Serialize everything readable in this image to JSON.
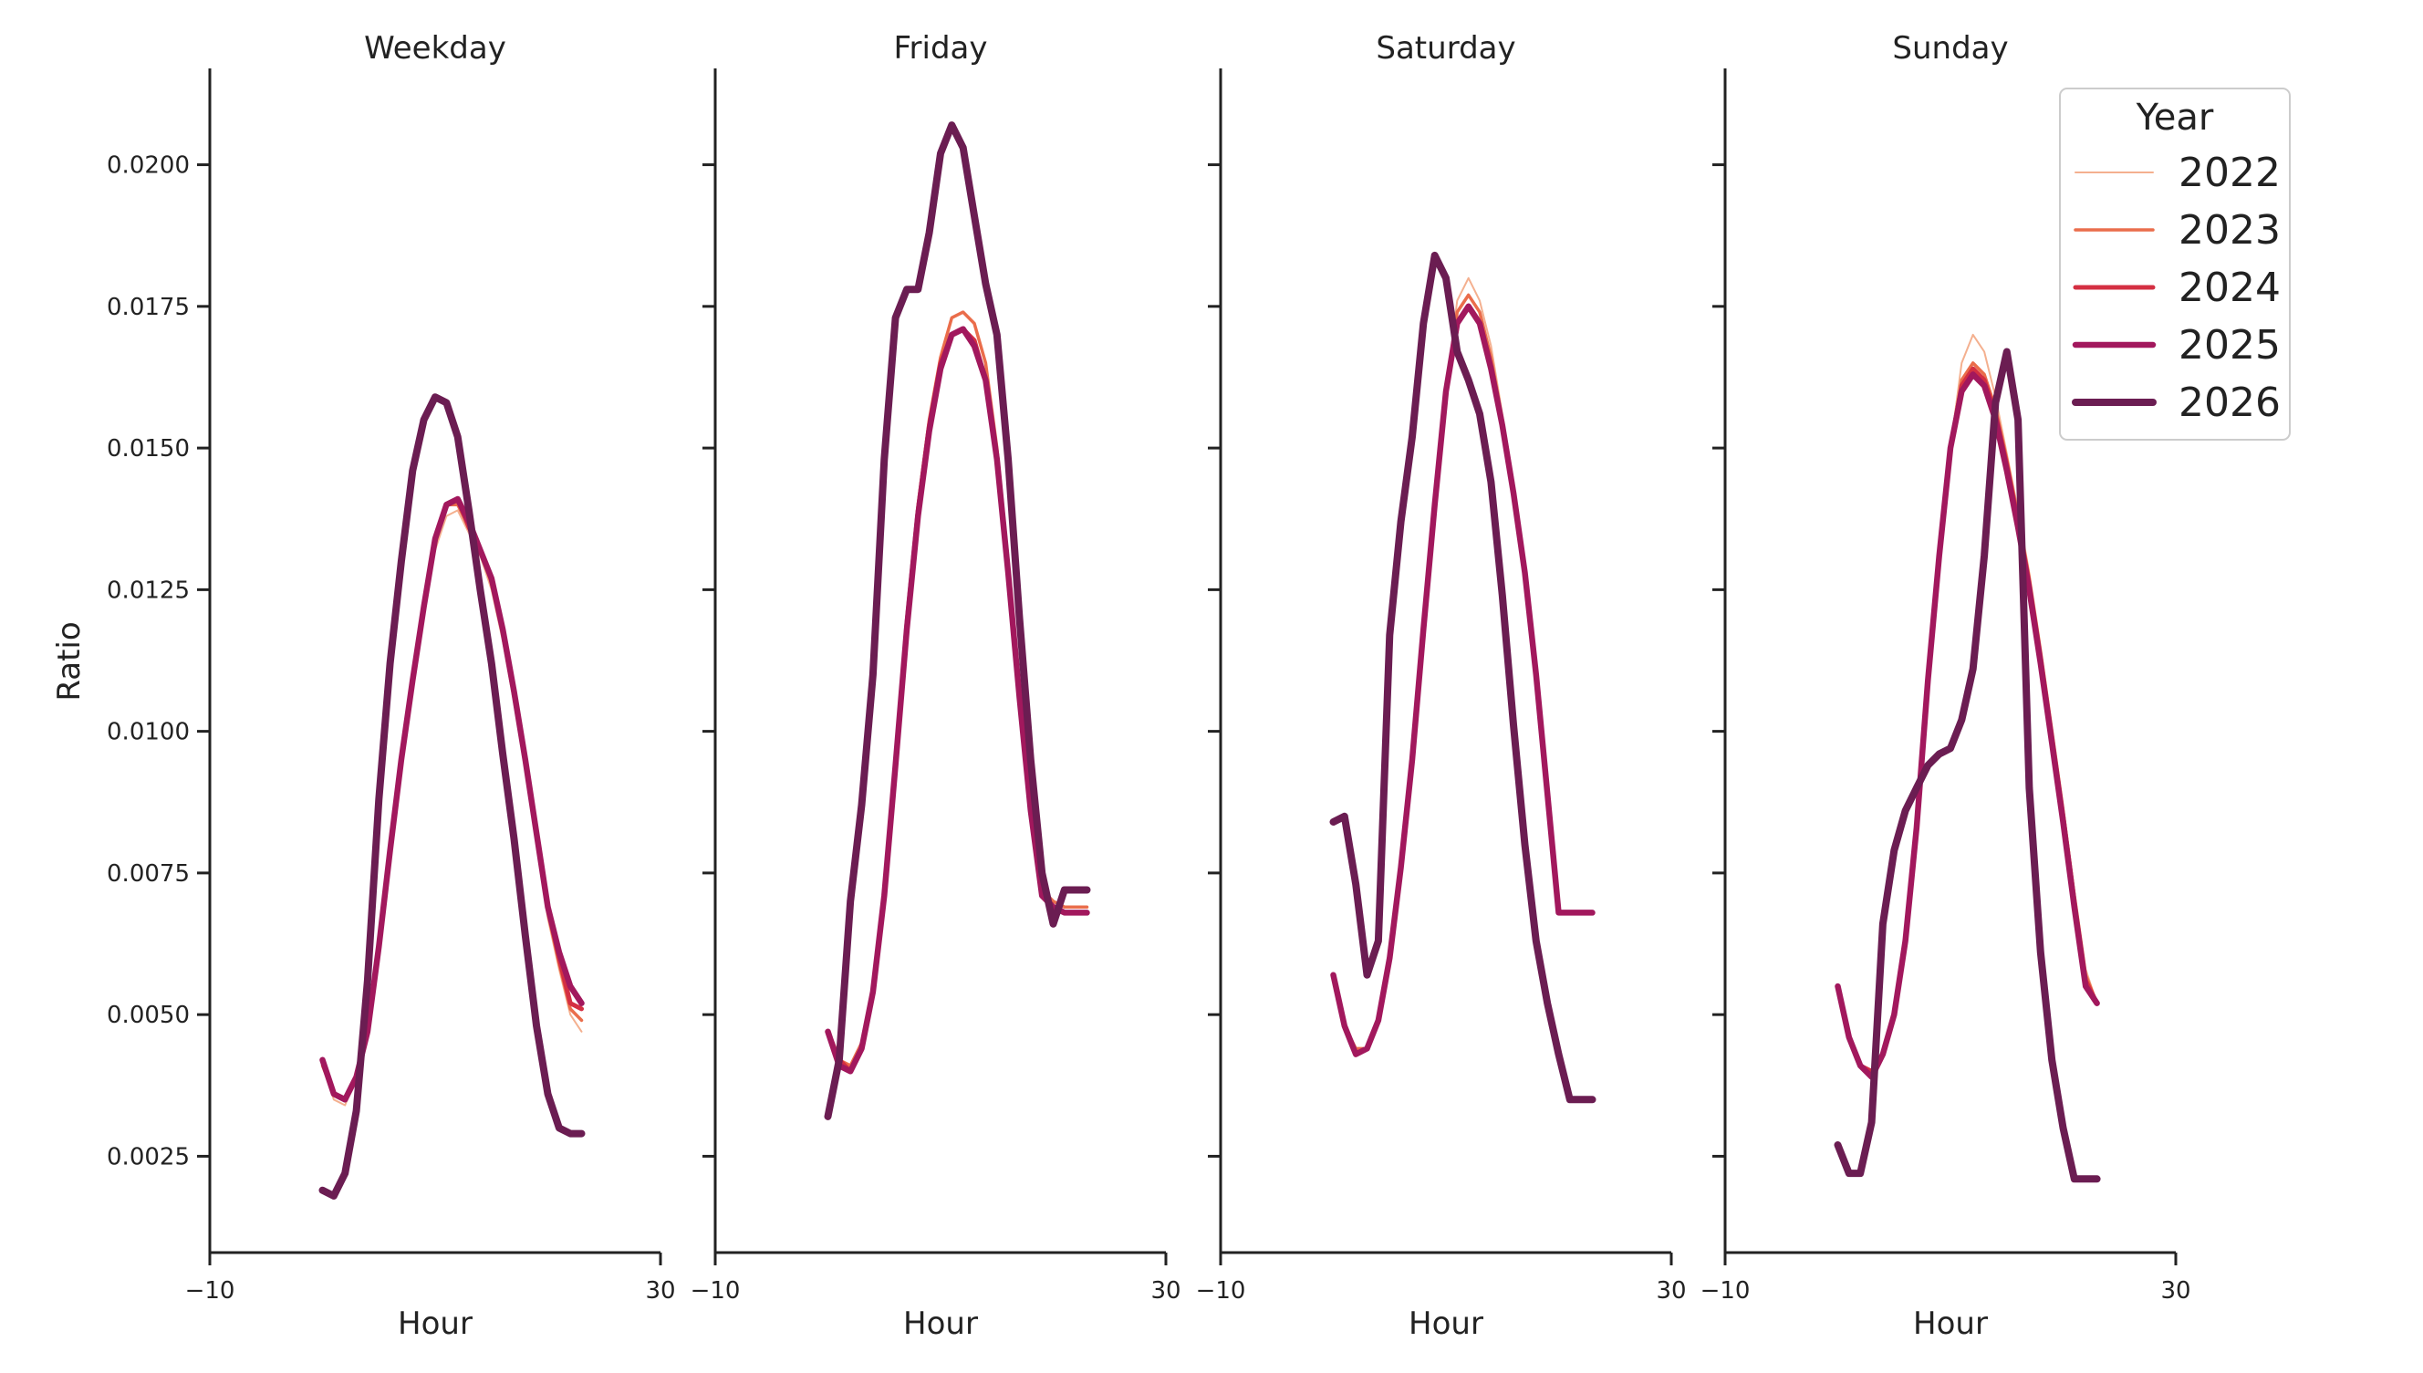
{
  "chart_data": {
    "type": "line",
    "ylabel": "Ratio",
    "legend": {
      "title": "Year",
      "position": "top-right"
    },
    "xlim": [
      -10,
      30
    ],
    "ylim": [
      0.0008,
      0.0217
    ],
    "xticks": [
      -10,
      30
    ],
    "xtick_labels": [
      "−10",
      "30"
    ],
    "yticks": [
      0.0025,
      0.005,
      0.0075,
      0.01,
      0.0125,
      0.015,
      0.0175,
      0.02
    ],
    "ytick_labels": [
      "0.0025",
      "0.0050",
      "0.0075",
      "0.0100",
      "0.0125",
      "0.0150",
      "0.0175",
      "0.0200"
    ],
    "grid": false,
    "series_styles": [
      {
        "name": "2022",
        "color": "#f4b08f",
        "width": 2
      },
      {
        "name": "2023",
        "color": "#ea6d4b",
        "width": 3.5
      },
      {
        "name": "2024",
        "color": "#d42f42",
        "width": 5
      },
      {
        "name": "2025",
        "color": "#a2185d",
        "width": 6.5
      },
      {
        "name": "2026",
        "color": "#6b1d52",
        "width": 8
      }
    ],
    "panels": [
      {
        "title": "Weekday",
        "xlabel": "Hour",
        "x": [
          0,
          1,
          2,
          3,
          4,
          5,
          6,
          7,
          8,
          9,
          10,
          11,
          12,
          13,
          14,
          15,
          16,
          17,
          18,
          19,
          20,
          21,
          22,
          23
        ],
        "series": [
          {
            "name": "2022",
            "values": [
              0.0041,
              0.0035,
              0.0034,
              0.0039,
              0.0048,
              0.0062,
              0.0079,
              0.0095,
              0.0108,
              0.0121,
              0.0132,
              0.0138,
              0.0139,
              0.0135,
              0.0131,
              0.0125,
              0.0116,
              0.0105,
              0.0093,
              0.008,
              0.0067,
              0.0058,
              0.005,
              0.0047
            ]
          },
          {
            "name": "2023",
            "values": [
              0.0041,
              0.0036,
              0.0035,
              0.0039,
              0.0048,
              0.0062,
              0.0079,
              0.0095,
              0.0108,
              0.0121,
              0.0133,
              0.014,
              0.014,
              0.0136,
              0.0132,
              0.0126,
              0.0117,
              0.0106,
              0.0094,
              0.0081,
              0.0068,
              0.0059,
              0.0051,
              0.0049
            ]
          },
          {
            "name": "2024",
            "values": [
              0.0042,
              0.0036,
              0.0035,
              0.0039,
              0.0048,
              0.0062,
              0.0079,
              0.0095,
              0.0109,
              0.0122,
              0.0134,
              0.014,
              0.0141,
              0.0136,
              0.0132,
              0.0127,
              0.0118,
              0.0107,
              0.0095,
              0.0082,
              0.0069,
              0.006,
              0.0052,
              0.0051
            ]
          },
          {
            "name": "2025",
            "values": [
              0.0042,
              0.0036,
              0.0035,
              0.0039,
              0.0047,
              0.0062,
              0.0079,
              0.0095,
              0.0109,
              0.0122,
              0.0134,
              0.014,
              0.0141,
              0.0137,
              0.0132,
              0.0127,
              0.0118,
              0.0107,
              0.0095,
              0.0082,
              0.0069,
              0.0061,
              0.0055,
              0.0052
            ]
          },
          {
            "name": "2026",
            "values": [
              0.0019,
              0.0018,
              0.0022,
              0.0033,
              0.0056,
              0.0088,
              0.0112,
              0.013,
              0.0146,
              0.0155,
              0.0159,
              0.0158,
              0.0152,
              0.0139,
              0.0125,
              0.0112,
              0.0096,
              0.0081,
              0.0064,
              0.0048,
              0.0036,
              0.003,
              0.0029,
              0.0029
            ]
          }
        ]
      },
      {
        "title": "Friday",
        "xlabel": "Hour",
        "x": [
          0,
          1,
          2,
          3,
          4,
          5,
          6,
          7,
          8,
          9,
          10,
          11,
          12,
          13,
          14,
          15,
          16,
          17,
          18,
          19,
          20,
          21,
          22,
          23
        ],
        "series": [
          {
            "name": "2022",
            "values": [
              0.0047,
              0.0042,
              0.0041,
              0.0045,
              0.0055,
              0.0072,
              0.0095,
              0.012,
              0.014,
              0.0155,
              0.0166,
              0.0173,
              0.0174,
              0.0172,
              0.0165,
              0.015,
              0.013,
              0.0108,
              0.0088,
              0.0072,
              0.007,
              0.0069,
              0.0069,
              0.0069
            ]
          },
          {
            "name": "2023",
            "values": [
              0.0047,
              0.0042,
              0.0041,
              0.0045,
              0.0055,
              0.0072,
              0.0095,
              0.012,
              0.014,
              0.0155,
              0.0166,
              0.0173,
              0.0174,
              0.0172,
              0.0165,
              0.015,
              0.013,
              0.0108,
              0.0088,
              0.0072,
              0.007,
              0.0069,
              0.0069,
              0.0069
            ]
          },
          {
            "name": "2024",
            "values": [
              0.0047,
              0.0042,
              0.004,
              0.0044,
              0.0054,
              0.0071,
              0.0094,
              0.0119,
              0.0139,
              0.0154,
              0.0165,
              0.017,
              0.0171,
              0.0169,
              0.0162,
              0.0148,
              0.0128,
              0.0106,
              0.0086,
              0.0071,
              0.0069,
              0.0068,
              0.0068,
              0.0068
            ]
          },
          {
            "name": "2025",
            "values": [
              0.0047,
              0.0041,
              0.004,
              0.0044,
              0.0054,
              0.0071,
              0.0094,
              0.0118,
              0.0138,
              0.0153,
              0.0164,
              0.017,
              0.0171,
              0.0168,
              0.0162,
              0.0148,
              0.0128,
              0.0106,
              0.0086,
              0.0071,
              0.0069,
              0.0068,
              0.0068,
              0.0068
            ]
          },
          {
            "name": "2026",
            "values": [
              0.0032,
              0.0042,
              0.007,
              0.0087,
              0.011,
              0.0148,
              0.0173,
              0.0178,
              0.0178,
              0.0188,
              0.0202,
              0.0207,
              0.0203,
              0.0191,
              0.0179,
              0.017,
              0.0148,
              0.012,
              0.0095,
              0.0075,
              0.0066,
              0.0072,
              0.0072,
              0.0072
            ]
          }
        ]
      },
      {
        "title": "Saturday",
        "xlabel": "Hour",
        "x": [
          0,
          1,
          2,
          3,
          4,
          5,
          6,
          7,
          8,
          9,
          10,
          11,
          12,
          13,
          14,
          15,
          16,
          17,
          18,
          19,
          20,
          21,
          22,
          23
        ],
        "series": [
          {
            "name": "2022",
            "values": [
              0.0057,
              0.0048,
              0.0044,
              0.0044,
              0.0049,
              0.006,
              0.0076,
              0.0095,
              0.0118,
              0.014,
              0.016,
              0.0176,
              0.018,
              0.0176,
              0.0168,
              0.0156,
              0.0144,
              0.013,
              0.0112,
              0.0091,
              0.0068,
              0.0068,
              0.0068,
              0.0068
            ]
          },
          {
            "name": "2023",
            "values": [
              0.0057,
              0.0048,
              0.0044,
              0.0044,
              0.0049,
              0.006,
              0.0076,
              0.0095,
              0.0118,
              0.014,
              0.016,
              0.0174,
              0.0177,
              0.0174,
              0.0166,
              0.0155,
              0.0143,
              0.0129,
              0.0111,
              0.009,
              0.0068,
              0.0068,
              0.0068,
              0.0068
            ]
          },
          {
            "name": "2024",
            "values": [
              0.0057,
              0.0048,
              0.0043,
              0.0044,
              0.0049,
              0.006,
              0.0076,
              0.0095,
              0.0118,
              0.014,
              0.016,
              0.0172,
              0.0175,
              0.0172,
              0.0164,
              0.0154,
              0.0142,
              0.0128,
              0.011,
              0.0089,
              0.0068,
              0.0068,
              0.0068,
              0.0068
            ]
          },
          {
            "name": "2025",
            "values": [
              0.0057,
              0.0048,
              0.0043,
              0.0044,
              0.0049,
              0.006,
              0.0076,
              0.0095,
              0.0118,
              0.014,
              0.016,
              0.0172,
              0.0175,
              0.0172,
              0.0164,
              0.0154,
              0.0142,
              0.0128,
              0.011,
              0.0089,
              0.0068,
              0.0068,
              0.0068,
              0.0068
            ]
          },
          {
            "name": "2026",
            "values": [
              0.0084,
              0.0085,
              0.0073,
              0.0057,
              0.0063,
              0.0117,
              0.0137,
              0.0152,
              0.0172,
              0.0184,
              0.018,
              0.0167,
              0.0162,
              0.0156,
              0.0144,
              0.0124,
              0.0101,
              0.008,
              0.0063,
              0.0052,
              0.0043,
              0.0035,
              0.0035,
              0.0035
            ]
          }
        ]
      },
      {
        "title": "Sunday",
        "xlabel": "Hour",
        "x": [
          0,
          1,
          2,
          3,
          4,
          5,
          6,
          7,
          8,
          9,
          10,
          11,
          12,
          13,
          14,
          15,
          16,
          17,
          18,
          19,
          20,
          21,
          22,
          23
        ],
        "series": [
          {
            "name": "2022",
            "values": [
              0.0055,
              0.0046,
              0.0041,
              0.004,
              0.0043,
              0.005,
              0.0063,
              0.0083,
              0.0109,
              0.0131,
              0.015,
              0.0165,
              0.017,
              0.0167,
              0.0159,
              0.0149,
              0.0139,
              0.0128,
              0.0115,
              0.0101,
              0.0087,
              0.0072,
              0.0058,
              0.0052
            ]
          },
          {
            "name": "2023",
            "values": [
              0.0055,
              0.0046,
              0.0041,
              0.004,
              0.0043,
              0.005,
              0.0063,
              0.0083,
              0.0109,
              0.0131,
              0.015,
              0.0162,
              0.0165,
              0.0163,
              0.0157,
              0.0148,
              0.0138,
              0.0127,
              0.0114,
              0.01,
              0.0086,
              0.0071,
              0.0057,
              0.0052
            ]
          },
          {
            "name": "2024",
            "values": [
              0.0055,
              0.0046,
              0.0041,
              0.004,
              0.0043,
              0.005,
              0.0063,
              0.0083,
              0.0109,
              0.0131,
              0.015,
              0.0161,
              0.0164,
              0.0162,
              0.0156,
              0.0147,
              0.0137,
              0.0126,
              0.0113,
              0.0099,
              0.0085,
              0.007,
              0.0056,
              0.0052
            ]
          },
          {
            "name": "2025",
            "values": [
              0.0055,
              0.0046,
              0.0041,
              0.0039,
              0.0043,
              0.005,
              0.0063,
              0.0083,
              0.0109,
              0.0131,
              0.015,
              0.016,
              0.0163,
              0.0161,
              0.0155,
              0.0146,
              0.0136,
              0.0125,
              0.0112,
              0.0098,
              0.0084,
              0.0069,
              0.0055,
              0.0052
            ]
          },
          {
            "name": "2026",
            "values": [
              0.0027,
              0.0022,
              0.0022,
              0.0031,
              0.0066,
              0.0079,
              0.0086,
              0.009,
              0.0094,
              0.0096,
              0.0097,
              0.0102,
              0.0111,
              0.0131,
              0.0158,
              0.0167,
              0.0155,
              0.009,
              0.0061,
              0.0042,
              0.003,
              0.0021,
              0.0021,
              0.0021
            ]
          }
        ]
      }
    ]
  }
}
